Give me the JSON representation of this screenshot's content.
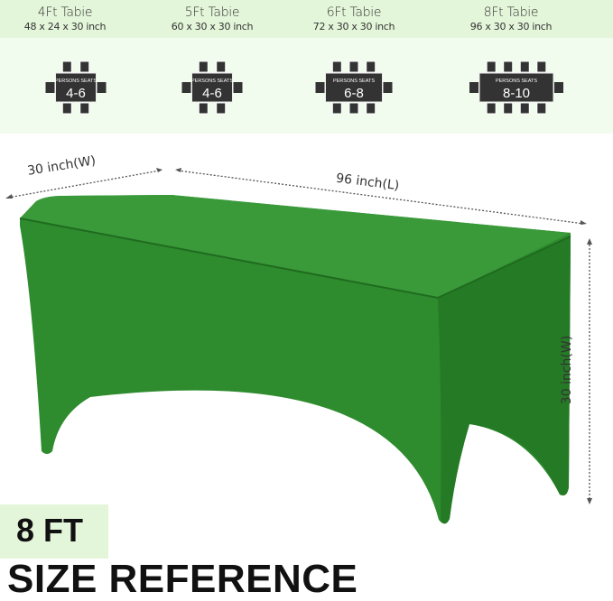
{
  "sizes": [
    {
      "title": "4Ft Tabie",
      "dims": "48 x 24 x 30 inch",
      "seats_label": "PERSONS SEATS",
      "seats": "4-6",
      "chairs_per_side": 2
    },
    {
      "title": "5Ft Tabie",
      "dims": "60 x 30 x 30 inch",
      "seats_label": "PERSONS SEATS",
      "seats": "4-6",
      "chairs_per_side": 2
    },
    {
      "title": "6Ft Tabie",
      "dims": "72 x 30 x 30 inch",
      "seats_label": "PERSONS SEATS",
      "seats": "6-8",
      "chairs_per_side": 3
    },
    {
      "title": "8Ft Tabie",
      "dims": "96 x 30 x 30 inch",
      "seats_label": "PERSONS SEATS",
      "seats": "8-10",
      "chairs_per_side": 4
    }
  ],
  "dimensions": {
    "width": "30 inch(W)",
    "length": "96 inch(L)",
    "height": "30 inch(W)"
  },
  "badge": "8 FT",
  "heading": "SIZE REFERENCE",
  "colors": {
    "tablecloth": "#2f8a2f",
    "band": "#e4f6da",
    "icon": "#333333"
  }
}
